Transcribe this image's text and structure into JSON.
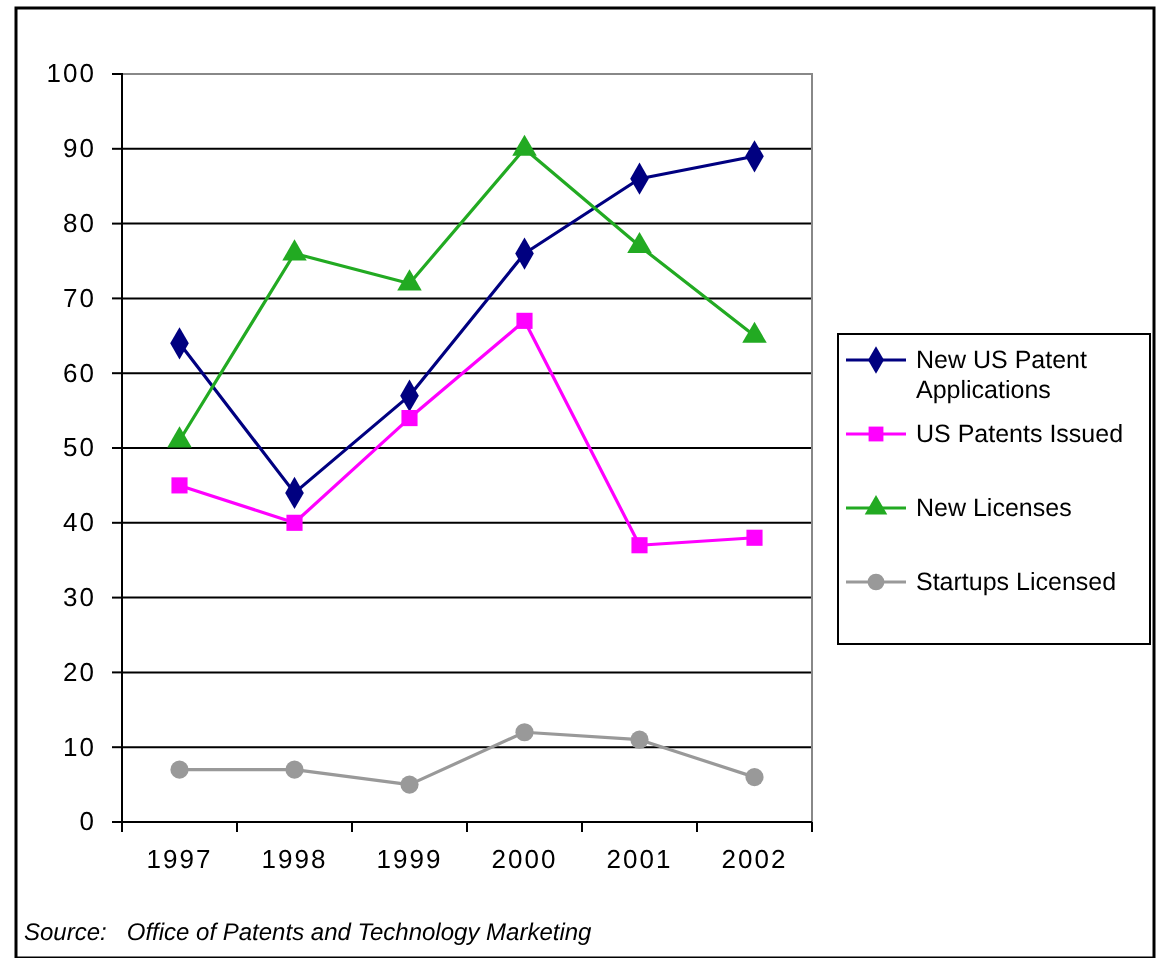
{
  "chart_data": {
    "type": "line",
    "categories": [
      "1997",
      "1998",
      "1999",
      "2000",
      "2001",
      "2002"
    ],
    "series": [
      {
        "name": "New US Patent Applications",
        "color": "#000080",
        "marker": "diamond",
        "values": [
          64,
          44,
          57,
          76,
          86,
          89
        ]
      },
      {
        "name": "US Patents Issued",
        "color": "#ff00ff",
        "marker": "square",
        "values": [
          45,
          40,
          54,
          67,
          37,
          38
        ]
      },
      {
        "name": "New Licenses",
        "color": "#22aa22",
        "marker": "triangle",
        "values": [
          51,
          76,
          72,
          90,
          77,
          65
        ]
      },
      {
        "name": "Startups Licensed",
        "color": "#999999",
        "marker": "circle",
        "values": [
          7,
          7,
          5,
          12,
          11,
          6
        ]
      }
    ],
    "ylim": [
      0,
      100
    ],
    "yticks": [
      0,
      10,
      20,
      30,
      40,
      50,
      60,
      70,
      80,
      90,
      100
    ],
    "grid": "y",
    "legend": "right",
    "line_style": "solid",
    "annotations": [
      "Source:   Office of Patents and Technology Marketing"
    ]
  }
}
